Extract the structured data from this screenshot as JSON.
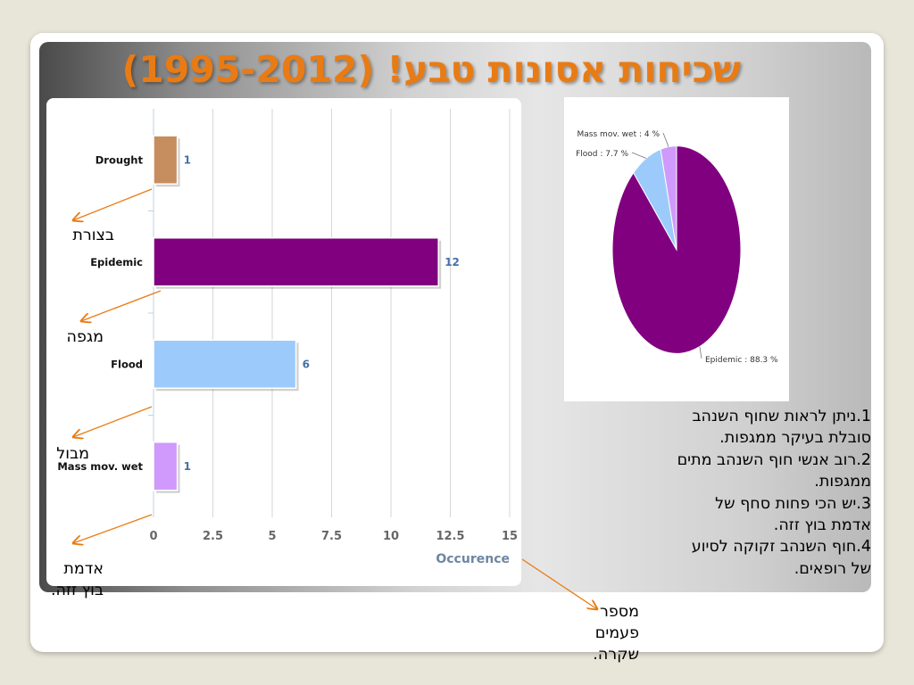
{
  "slide": {
    "title": "שכיחות אסונות טבע! (1995-2012)"
  },
  "chart_data": [
    {
      "type": "bar",
      "orientation": "horizontal",
      "categories": [
        "Drought",
        "Epidemic",
        "Flood",
        "Mass mov. wet"
      ],
      "values": [
        1,
        12,
        6,
        1
      ],
      "value_labels": [
        "1",
        "12",
        "6",
        "1"
      ],
      "colors": [
        "#c68e5f",
        "#800080",
        "#9ccbfb",
        "#cf9afb"
      ],
      "x_ticks": [
        "0",
        "2.5",
        "5",
        "7.5",
        "10",
        "12.5",
        "15"
      ],
      "xlim": [
        0,
        15
      ],
      "xlabel": "Occurence",
      "grid": true
    },
    {
      "type": "pie",
      "slices": [
        {
          "label": "Epidemic : 88.3 %",
          "value": 88.3,
          "color": "#800080"
        },
        {
          "label": "Flood : 7.7 %",
          "value": 7.7,
          "color": "#9ccbfb"
        },
        {
          "label": "Mass mov. wet : 4 %",
          "value": 4,
          "color": "#cf9afb"
        }
      ]
    }
  ],
  "annotations": {
    "drought_he": "בצורת",
    "epidemic_he": "מגפה",
    "flood_he": "מבול",
    "mass_line1": "אדמת",
    "mass_line2": "בוץ זזה.",
    "axis_line1": "מספר",
    "axis_line2": "פעמים",
    "axis_line3": "שקרה."
  },
  "findings": [
    "1.ניתן לראות שחוף השנהב",
    "סובלת בעיקר ממגפות.",
    "2.רוב אנשי חוף השנהב מתים",
    "ממגפות.",
    "3.יש הכי פחות סחף של",
    "אדמת בוץ זזה.",
    "4.חוף השנהב זקוקה לסיוע",
    "של רופאים."
  ],
  "colors": {
    "accent": "#e97b14",
    "axis_label": "#6d86a3",
    "value_label": "#4572a7"
  }
}
